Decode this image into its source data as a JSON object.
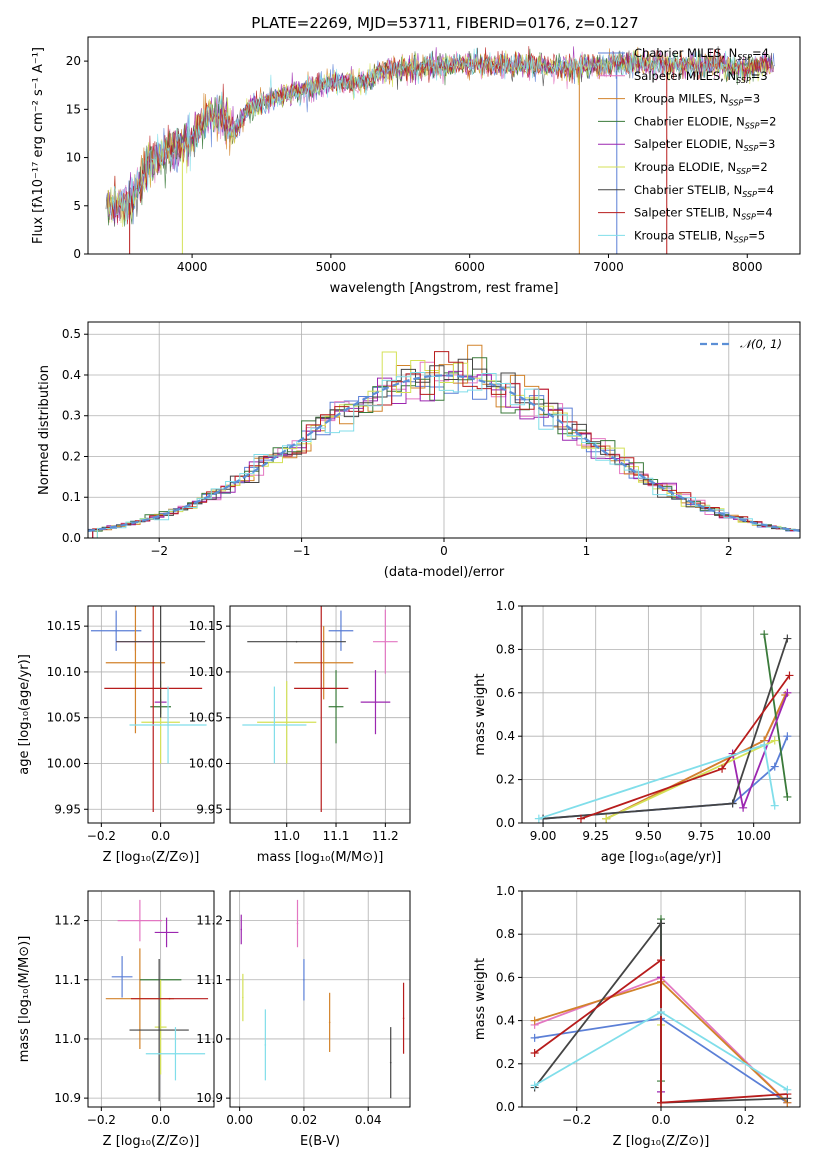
{
  "figure": {
    "title": "PLATE=2269, MJD=53711, FIBERID=0176, z=0.127"
  },
  "chart_data": [
    {
      "id": "spectrum",
      "type": "line",
      "xlabel": "wavelength [Angstrom, rest frame]",
      "ylabel": "Flux [fλ10⁻¹⁷ erg cm⁻² s⁻¹ A⁻¹]",
      "xlim": [
        3250,
        8380
      ],
      "ylim": [
        0,
        22.5
      ],
      "xticks": [
        4000,
        5000,
        6000,
        7000,
        8000
      ],
      "yticks": [
        0,
        5,
        10,
        15,
        20
      ],
      "grid": false,
      "legend_position": "upper-right",
      "legend": [
        {
          "label": "Chabrier MILES, N_SSP=4",
          "color": "#5b7fd6"
        },
        {
          "label": "Salpeter MILES, N_SSP=3",
          "color": "#e377c2"
        },
        {
          "label": "Kroupa MILES, N_SSP=3",
          "color": "#d2832b"
        },
        {
          "label": "Chabrier ELODIE, N_SSP=2",
          "color": "#3a7a3a"
        },
        {
          "label": "Salpeter ELODIE, N_SSP=3",
          "color": "#9c27b0"
        },
        {
          "label": "Kroupa ELODIE, N_SSP=2",
          "color": "#d4e157"
        },
        {
          "label": "Chabrier STELIB, N_SSP=4",
          "color": "#444444"
        },
        {
          "label": "Salpeter STELIB, N_SSP=4",
          "color": "#b71c1c"
        },
        {
          "label": "Kroupa STELIB, N_SSP=5",
          "color": "#80deea"
        }
      ],
      "continuum": {
        "x": [
          3380,
          3550,
          3700,
          3900,
          4000,
          4100,
          4200,
          4300,
          4400,
          4600,
          4800,
          5000,
          5200,
          5400,
          5600,
          5800,
          6000,
          6200,
          6400,
          6600,
          6800,
          7000,
          7200,
          7400,
          7600,
          7800,
          8000,
          8200
        ],
        "y": [
          5.0,
          5.3,
          9.5,
          11.3,
          12.0,
          14.0,
          14.5,
          12.5,
          15.0,
          16.2,
          17.0,
          17.8,
          17.8,
          19.0,
          19.3,
          19.5,
          19.8,
          19.5,
          19.7,
          19.3,
          19.4,
          19.6,
          19.8,
          19.7,
          19.5,
          19.6,
          19.2,
          19.8
        ]
      },
      "drop_lines_x": [
        3550,
        3930,
        6790,
        7060,
        7420
      ]
    },
    {
      "id": "residuals",
      "type": "bar",
      "xlabel": "(data-model)/error",
      "ylabel": "Normed distribution",
      "xlim": [
        -2.5,
        2.5
      ],
      "ylim": [
        0,
        0.53
      ],
      "xticks": [
        -2,
        -1,
        0,
        1,
        2
      ],
      "yticks": [
        0.0,
        0.1,
        0.2,
        0.3,
        0.4,
        0.5
      ],
      "grid": true,
      "legend_position": "upper-right",
      "legend": [
        {
          "label": "𝒩(0, 1)",
          "color": "#5b8fd6",
          "dash": true
        }
      ],
      "bin_width": 0.1,
      "colors": [
        "#5b7fd6",
        "#e377c2",
        "#d2832b",
        "#3a7a3a",
        "#9c27b0",
        "#d4e157",
        "#444444",
        "#b71c1c",
        "#80deea"
      ]
    },
    {
      "id": "age-vs-Z",
      "type": "scatter",
      "xlabel": "Z [log₁₀(Z/Z⊙)]",
      "ylabel": "age  [log₁₀(age/yr)]",
      "xlim": [
        -0.245,
        0.18
      ],
      "ylim": [
        9.935,
        10.172
      ],
      "xticks": [
        -0.2,
        0.0
      ],
      "yticks": [
        9.95,
        10.0,
        10.05,
        10.1,
        10.15
      ],
      "grid": true,
      "points": [
        {
          "x": -0.15,
          "y": 10.145,
          "xerr": 0.085,
          "yerr": 0.022,
          "color": "#5b7fd6"
        },
        {
          "x": -0.085,
          "y": 10.133,
          "xerr": 0.065,
          "yerr": 0.01,
          "color": "#e377c2"
        },
        {
          "x": -0.085,
          "y": 10.11,
          "xerr": 0.1,
          "yerr": 0.077,
          "color": "#d2832b"
        },
        {
          "x": 0.0,
          "y": 10.062,
          "xerr": 0.035,
          "yerr": 0.008,
          "color": "#3a7a3a"
        },
        {
          "x": 0.0,
          "y": 10.067,
          "xerr": 0.02,
          "yerr": 0.0,
          "color": "#9c27b0"
        },
        {
          "x": 0.0,
          "y": 10.045,
          "xerr": 0.065,
          "yerr": 0.045,
          "color": "#d4e157"
        },
        {
          "x": 0.0,
          "y": 10.133,
          "xerr": 0.15,
          "yerr": 0.083,
          "color": "#444444"
        },
        {
          "x": -0.025,
          "y": 10.082,
          "xerr": 0.165,
          "yerr": 0.135,
          "color": "#b71c1c"
        },
        {
          "x": 0.025,
          "y": 10.042,
          "xerr": 0.13,
          "yerr": 0.042,
          "color": "#80deea"
        }
      ]
    },
    {
      "id": "age-vs-mass",
      "type": "scatter",
      "xlabel": "mass [log₁₀(M/M⊙)]",
      "ylabel": "",
      "xlim": [
        10.885,
        11.25
      ],
      "ylim": [
        9.935,
        10.172
      ],
      "xticks": [
        11.0,
        11.1,
        11.2
      ],
      "yticks": [
        9.95,
        10.0,
        10.05,
        10.1,
        10.15
      ],
      "grid": true,
      "points": [
        {
          "x": 11.11,
          "y": 10.145,
          "xerr": 0.025,
          "yerr": 0.022,
          "color": "#5b7fd6"
        },
        {
          "x": 11.2,
          "y": 10.133,
          "xerr": 0.025,
          "yerr": 0.035,
          "color": "#e377c2"
        },
        {
          "x": 11.075,
          "y": 10.11,
          "xerr": 0.06,
          "yerr": 0.04,
          "color": "#d2832b"
        },
        {
          "x": 11.1,
          "y": 10.062,
          "xerr": 0.015,
          "yerr": 0.04,
          "color": "#3a7a3a"
        },
        {
          "x": 11.18,
          "y": 10.067,
          "xerr": 0.03,
          "yerr": 0.035,
          "color": "#9c27b0"
        },
        {
          "x": 11.0,
          "y": 10.045,
          "xerr": 0.06,
          "yerr": 0.045,
          "color": "#d4e157"
        },
        {
          "x": 11.02,
          "y": 10.133,
          "xerr": 0.1,
          "yerr": 0.0,
          "color": "#444444"
        },
        {
          "x": 11.07,
          "y": 10.082,
          "xerr": 0.055,
          "yerr": 0.135,
          "color": "#b71c1c"
        },
        {
          "x": 10.975,
          "y": 10.042,
          "xerr": 0.065,
          "yerr": 0.042,
          "color": "#80deea"
        }
      ]
    },
    {
      "id": "weight-vs-age",
      "type": "line",
      "xlabel": "age  [log₁₀(age/yr)]",
      "ylabel": "mass weight",
      "xlim": [
        8.9,
        10.22
      ],
      "ylim": [
        0,
        1
      ],
      "xticks": [
        9.0,
        9.25,
        9.5,
        9.75,
        10.0
      ],
      "yticks": [
        0.0,
        0.2,
        0.4,
        0.6,
        0.8,
        1.0
      ],
      "grid": true,
      "series": [
        {
          "color": "#5b7fd6",
          "x": [
            9.0,
            9.9,
            10.1,
            10.16
          ],
          "y": [
            0.02,
            0.09,
            0.26,
            0.4
          ]
        },
        {
          "color": "#e377c2",
          "x": [
            9.3,
            10.05,
            10.16
          ],
          "y": [
            0.02,
            0.38,
            0.6
          ]
        },
        {
          "color": "#d2832b",
          "x": [
            9.3,
            10.05,
            10.15
          ],
          "y": [
            0.02,
            0.38,
            0.59
          ]
        },
        {
          "color": "#3a7a3a",
          "x": [
            10.05,
            10.16
          ],
          "y": [
            0.87,
            0.12
          ]
        },
        {
          "color": "#9c27b0",
          "x": [
            9.9,
            9.95,
            10.16
          ],
          "y": [
            0.32,
            0.07,
            0.6
          ]
        },
        {
          "color": "#d4e157",
          "x": [
            9.3,
            10.1
          ],
          "y": [
            0.02,
            0.38
          ]
        },
        {
          "color": "#444444",
          "x": [
            9.0,
            9.9,
            10.16
          ],
          "y": [
            0.02,
            0.09,
            0.85
          ]
        },
        {
          "color": "#b71c1c",
          "x": [
            9.18,
            9.85,
            10.17
          ],
          "y": [
            0.02,
            0.25,
            0.68
          ]
        },
        {
          "color": "#80deea",
          "x": [
            8.98,
            10.05,
            10.1
          ],
          "y": [
            0.02,
            0.36,
            0.08
          ]
        }
      ]
    },
    {
      "id": "mass-vs-Z",
      "type": "scatter",
      "xlabel": "Z [log₁₀(Z/Z⊙)]",
      "ylabel": "mass [log₁₀(M/M⊙)]",
      "xlim": [
        -0.245,
        0.18
      ],
      "ylim": [
        10.885,
        11.25
      ],
      "xticks": [
        -0.2,
        0.0
      ],
      "yticks": [
        10.9,
        11.0,
        11.1,
        11.2
      ],
      "grid": true,
      "points": [
        {
          "x": -0.13,
          "y": 11.105,
          "xerr": 0.035,
          "yerr": 0.035,
          "color": "#5b7fd6"
        },
        {
          "x": -0.07,
          "y": 11.2,
          "xerr": 0.075,
          "yerr": 0.035,
          "color": "#e377c2"
        },
        {
          "x": -0.07,
          "y": 11.068,
          "xerr": 0.115,
          "yerr": 0.085,
          "color": "#d2832b"
        },
        {
          "x": 0.0,
          "y": 11.1,
          "xerr": 0.07,
          "yerr": 0.0,
          "color": "#3a7a3a"
        },
        {
          "x": 0.02,
          "y": 11.18,
          "xerr": 0.04,
          "yerr": 0.025,
          "color": "#9c27b0"
        },
        {
          "x": 0.0,
          "y": 11.02,
          "xerr": 0.02,
          "yerr": 0.08,
          "color": "#d4e157"
        },
        {
          "x": -0.005,
          "y": 11.015,
          "xerr": 0.1,
          "yerr": 0.12,
          "color": "#444444"
        },
        {
          "x": 0.03,
          "y": 11.068,
          "xerr": 0.13,
          "yerr": 0.0,
          "color": "#b71c1c"
        },
        {
          "x": 0.05,
          "y": 10.975,
          "xerr": 0.1,
          "yerr": 0.045,
          "color": "#80deea"
        }
      ]
    },
    {
      "id": "mass-vs-EBV",
      "type": "scatter",
      "xlabel": "E(B-V)",
      "ylabel": "",
      "xlim": [
        -0.003,
        0.053
      ],
      "ylim": [
        10.885,
        11.25
      ],
      "xticks": [
        0.0,
        0.02,
        0.04
      ],
      "yticks": [
        10.9,
        11.0,
        11.1,
        11.2
      ],
      "grid": true,
      "points": [
        {
          "x": 0.02,
          "y": 11.1,
          "xerr": 0,
          "yerr": 0.035,
          "color": "#5b7fd6"
        },
        {
          "x": 0.018,
          "y": 11.195,
          "xerr": 0,
          "yerr": 0.04,
          "color": "#e377c2"
        },
        {
          "x": 0.028,
          "y": 11.028,
          "xerr": 0,
          "yerr": 0.05,
          "color": "#d2832b"
        },
        {
          "x": 0.001,
          "y": 11.07,
          "xerr": 0,
          "yerr": 0.04,
          "color": "#d4e157"
        },
        {
          "x": 0.0005,
          "y": 11.185,
          "xerr": 0,
          "yerr": 0.025,
          "color": "#9c27b0"
        },
        {
          "x": 0.047,
          "y": 10.96,
          "xerr": 0,
          "yerr": 0.06,
          "color": "#444444"
        },
        {
          "x": 0.051,
          "y": 11.035,
          "xerr": 0,
          "yerr": 0.06,
          "color": "#b71c1c"
        },
        {
          "x": 0.008,
          "y": 10.99,
          "xerr": 0,
          "yerr": 0.06,
          "color": "#80deea"
        }
      ]
    },
    {
      "id": "weight-vs-Z",
      "type": "line",
      "xlabel": "Z [log₁₀(Z/Z⊙)]",
      "ylabel": "mass weight",
      "xlim": [
        -0.33,
        0.33
      ],
      "ylim": [
        0,
        1
      ],
      "xticks": [
        -0.2,
        0.0,
        0.2
      ],
      "yticks": [
        0.0,
        0.2,
        0.4,
        0.6,
        0.8,
        1.0
      ],
      "grid": true,
      "series": [
        {
          "color": "#5b7fd6",
          "x": [
            -0.3,
            0.0,
            0.3
          ],
          "y": [
            0.32,
            0.41,
            0.02
          ]
        },
        {
          "color": "#e377c2",
          "x": [
            -0.3,
            0.0,
            0.3
          ],
          "y": [
            0.38,
            0.6,
            0.02
          ]
        },
        {
          "color": "#d2832b",
          "x": [
            -0.3,
            0.0,
            0.3
          ],
          "y": [
            0.4,
            0.58,
            0.02
          ]
        },
        {
          "color": "#3a7a3a",
          "x": [
            0.0,
            0.0
          ],
          "y": [
            0.12,
            0.87
          ]
        },
        {
          "color": "#9c27b0",
          "x": [
            0.0,
            0.0
          ],
          "y": [
            0.07,
            0.6
          ]
        },
        {
          "color": "#d4e157",
          "x": [
            0.0,
            0.0
          ],
          "y": [
            0.02,
            0.38
          ]
        },
        {
          "color": "#444444",
          "x": [
            -0.3,
            0.0,
            0.0,
            0.3
          ],
          "y": [
            0.09,
            0.85,
            0.02,
            0.04
          ]
        },
        {
          "color": "#b71c1c",
          "x": [
            -0.3,
            0.0,
            0.0,
            0.3
          ],
          "y": [
            0.25,
            0.68,
            0.02,
            0.06
          ]
        },
        {
          "color": "#80deea",
          "x": [
            -0.3,
            0.0,
            0.3
          ],
          "y": [
            0.1,
            0.44,
            0.08
          ]
        }
      ]
    }
  ]
}
